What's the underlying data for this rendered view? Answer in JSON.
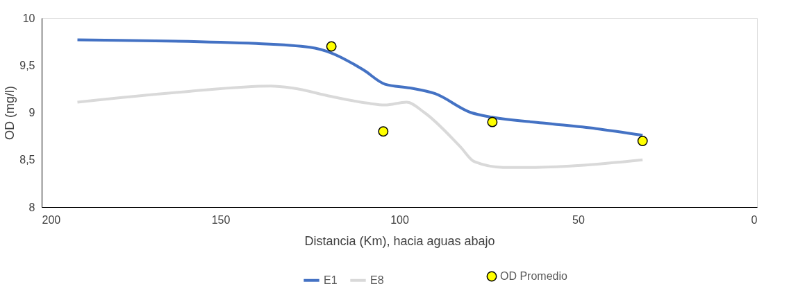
{
  "chart_data": {
    "type": "line",
    "xlabel": "Distancia (Km), hacia aguas abajo",
    "ylabel": "OD (mg/l)",
    "xlim": [
      200,
      0
    ],
    "xticks": [
      200,
      150,
      100,
      50,
      0
    ],
    "ylim": [
      8,
      10
    ],
    "yticks": [
      8,
      {
        "value": 8.5,
        "label": "8,5"
      },
      9,
      {
        "value": 9.5,
        "label": "9,5"
      },
      10
    ],
    "grid": false,
    "legend": "bottom",
    "series": [
      {
        "name": "E1",
        "color": "#4472c4",
        "x": [
          190,
          140,
          125,
          119,
          110,
          104,
          97,
          90,
          80,
          74,
          60,
          45,
          32
        ],
        "values": [
          9.77,
          9.73,
          9.69,
          9.63,
          9.45,
          9.3,
          9.26,
          9.2,
          9.0,
          8.95,
          8.89,
          8.83,
          8.76
        ]
      },
      {
        "name": "E8",
        "color": "#d9d9d9",
        "x": [
          190,
          160,
          136,
          130,
          119,
          109,
          104,
          98,
          93,
          83,
          79,
          71,
          63,
          50,
          32
        ],
        "values": [
          9.11,
          9.22,
          9.28,
          9.26,
          9.17,
          9.1,
          9.08,
          9.11,
          9.0,
          8.64,
          8.48,
          8.42,
          8.42,
          8.44,
          8.5
        ]
      },
      {
        "name": "OD Promedio",
        "type": "scatter",
        "color": "#ffff00",
        "marker": "circle",
        "x": [
          119,
          104.5,
          74,
          32
        ],
        "values": [
          9.7,
          8.8,
          8.9,
          8.7
        ]
      }
    ]
  }
}
